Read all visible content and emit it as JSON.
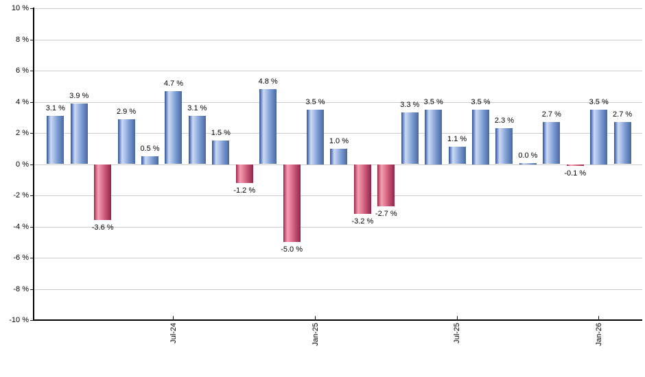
{
  "chart_data": {
    "type": "bar",
    "title": "",
    "unit": "%",
    "y_axis": {
      "min": -10,
      "max": 10,
      "tick_step": 2,
      "tick_labels": [
        "10 %",
        "8 %",
        "6 %",
        "4 %",
        "2 %",
        "0 %",
        "-2 %",
        "-4 %",
        "-6 %",
        "-8 %",
        "-10 %"
      ],
      "grid": true
    },
    "x_axis": {
      "ticks": [
        {
          "bar_index": 5,
          "label": "Jul-24"
        },
        {
          "bar_index": 11,
          "label": "Jan-25"
        },
        {
          "bar_index": 17,
          "label": "Jul-25"
        },
        {
          "bar_index": 23,
          "label": "Jan-26"
        }
      ]
    },
    "bars": [
      {
        "value": 3.1,
        "label": "3.1 %"
      },
      {
        "value": 3.9,
        "label": "3.9 %"
      },
      {
        "value": -3.6,
        "label": "-3.6 %"
      },
      {
        "value": 2.9,
        "label": "2.9 %"
      },
      {
        "value": 0.5,
        "label": "0.5 %"
      },
      {
        "value": 4.7,
        "label": "4.7 %"
      },
      {
        "value": 3.1,
        "label": "3.1 %"
      },
      {
        "value": 1.5,
        "label": "1.5 %"
      },
      {
        "value": -1.2,
        "label": "-1.2 %"
      },
      {
        "value": 4.8,
        "label": "4.8 %"
      },
      {
        "value": -5.0,
        "label": "-5.0 %"
      },
      {
        "value": 3.5,
        "label": "3.5 %"
      },
      {
        "value": 1.0,
        "label": "1.0 %"
      },
      {
        "value": -3.2,
        "label": "-3.2 %"
      },
      {
        "value": -2.7,
        "label": "-2.7 %"
      },
      {
        "value": 3.3,
        "label": "3.3 %"
      },
      {
        "value": 3.5,
        "label": "3.5 %"
      },
      {
        "value": 1.1,
        "label": "1.1 %"
      },
      {
        "value": 3.5,
        "label": "3.5 %"
      },
      {
        "value": 2.3,
        "label": "2.3 %"
      },
      {
        "value": 0.0,
        "label": "0.0 %"
      },
      {
        "value": 2.7,
        "label": "2.7 %"
      },
      {
        "value": -0.1,
        "label": "-0.1 %"
      },
      {
        "value": 3.5,
        "label": "3.5 %"
      },
      {
        "value": 2.7,
        "label": "2.7 %"
      }
    ],
    "colors": {
      "positive_bar": "#7b9bd3",
      "positive_bar_dark": "#30508f",
      "positive_bar_light": "#cdd9f2",
      "negative_bar": "#c85573",
      "negative_bar_dark": "#8a1a38",
      "negative_bar_light": "#f2a0b4",
      "gridline": "#cccccc",
      "axis": "#000000",
      "text": "#000000",
      "background": "#ffffff"
    }
  }
}
